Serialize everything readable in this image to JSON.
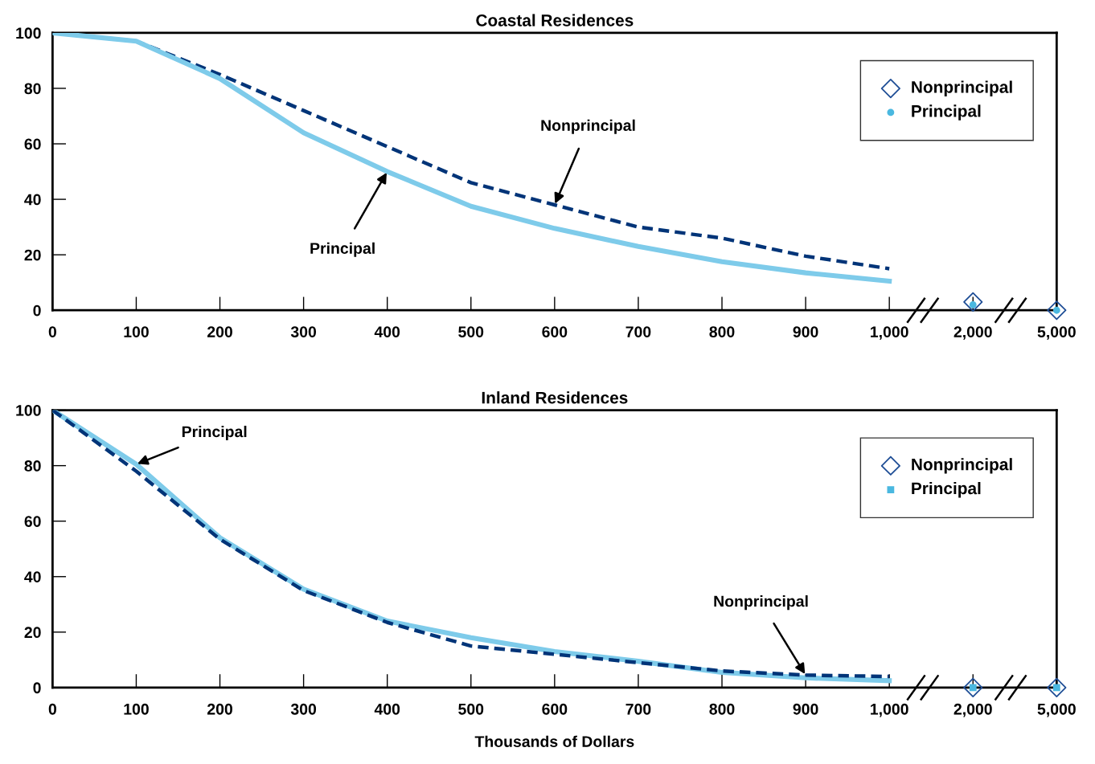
{
  "chart_data": [
    {
      "type": "line",
      "title": "Coastal Residences",
      "categories": [
        "0",
        "100",
        "200",
        "300",
        "400",
        "500",
        "600",
        "700",
        "800",
        "900",
        "1,000",
        "2,000",
        "5,000"
      ],
      "ylim": [
        0,
        100
      ],
      "yticks": [
        0,
        20,
        40,
        60,
        80,
        100
      ],
      "grid": false,
      "legend": "top right",
      "series": [
        {
          "type": "line",
          "color": "#003478",
          "line_style": "dashed",
          "marker": "none",
          "values": [
            100,
            97,
            85,
            72,
            59,
            46,
            38,
            30,
            26,
            19.5,
            15,
            null,
            null
          ]
        },
        {
          "type": "line",
          "color": "#7ecbea",
          "line_style": "solid",
          "marker": "none",
          "values": [
            100,
            97,
            83.5,
            64,
            50,
            37.5,
            29.5,
            23,
            17.5,
            13.5,
            10.5,
            null,
            null
          ]
        },
        {
          "type": "scatter",
          "name": "Nonprincipal",
          "color": "#1f4e96",
          "marker": "diamond",
          "x": [
            "2,000",
            "5,000"
          ],
          "values": [
            3,
            0
          ]
        },
        {
          "type": "scatter",
          "name": "Principal",
          "color": "#4ab8e0",
          "marker": "circle",
          "x": [
            "2,000",
            "5,000"
          ],
          "values": [
            2,
            0
          ]
        }
      ],
      "annotations": [
        {
          "text": "Nonprincipal",
          "x": "600",
          "y": 38
        },
        {
          "text": "Principal",
          "x": "400",
          "y": 50
        }
      ]
    },
    {
      "type": "line",
      "title": "Inland Residences",
      "xlabel": "Thousands of Dollars",
      "categories": [
        "0",
        "100",
        "200",
        "300",
        "400",
        "500",
        "600",
        "700",
        "800",
        "900",
        "1,000",
        "2,000",
        "5,000"
      ],
      "ylim": [
        0,
        100
      ],
      "yticks": [
        0,
        20,
        40,
        60,
        80,
        100
      ],
      "grid": false,
      "legend": "top right",
      "series": [
        {
          "type": "line",
          "color": "#7ecbea",
          "line_style": "solid",
          "marker": "none",
          "values": [
            100,
            80.5,
            54,
            35.5,
            24,
            18,
            13,
            9.5,
            5.5,
            3.5,
            2.5,
            null,
            null
          ]
        },
        {
          "type": "line",
          "color": "#003478",
          "line_style": "dashed",
          "marker": "none",
          "values": [
            100,
            78,
            53.5,
            35,
            23.5,
            15,
            12,
            9,
            6,
            4.5,
            4,
            null,
            null
          ]
        },
        {
          "type": "scatter",
          "name": "Nonprincipal",
          "color": "#1f4e96",
          "marker": "diamond",
          "x": [
            "2,000",
            "5,000"
          ],
          "values": [
            0,
            0
          ]
        },
        {
          "type": "scatter",
          "name": "Principal",
          "color": "#4ab8e0",
          "marker": "square",
          "x": [
            "2,000",
            "5,000"
          ],
          "values": [
            0,
            0
          ]
        }
      ],
      "annotations": [
        {
          "text": "Principal",
          "x": "100",
          "y": 80.5
        },
        {
          "text": "Nonprincipal",
          "x": "900",
          "y": 4.5
        }
      ]
    }
  ]
}
